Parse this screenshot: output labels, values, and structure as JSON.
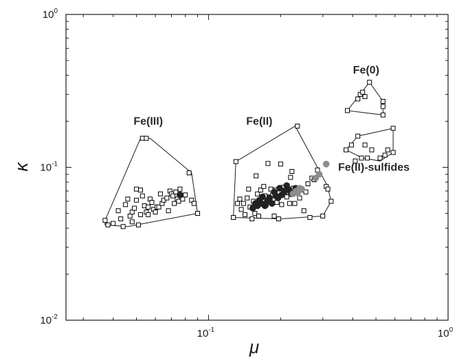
{
  "chart_data": {
    "type": "scatter",
    "title": "",
    "xlabel": "μ",
    "ylabel": "κ",
    "xscale": "log",
    "yscale": "log",
    "xlim": [
      0.0254,
      1.0
    ],
    "ylim": [
      0.01,
      1.0
    ],
    "grid": false,
    "x_ticks": [
      {
        "value": 0.1,
        "base": "10",
        "exp": "-1"
      },
      {
        "value": 1.0,
        "base": "10",
        "exp": "0"
      }
    ],
    "y_ticks": [
      {
        "value": 0.01,
        "base": "10",
        "exp": "-2"
      },
      {
        "value": 0.1,
        "base": "10",
        "exp": "-1"
      },
      {
        "value": 1.0,
        "base": "10",
        "exp": "0"
      }
    ],
    "groups": [
      {
        "label": "Fe(III)",
        "label_at": [
          0.056,
          0.19
        ],
        "hull": [
          [
            0.037,
            0.045
          ],
          [
            0.037,
            0.042
          ],
          [
            0.046,
            0.041
          ],
          [
            0.09,
            0.05
          ],
          [
            0.085,
            0.092
          ],
          [
            0.057,
            0.155
          ],
          [
            0.052,
            0.155
          ]
        ]
      },
      {
        "label": "Fe(II)",
        "label_at": [
          0.163,
          0.19
        ],
        "hull": [
          [
            0.127,
            0.047
          ],
          [
            0.13,
            0.109
          ],
          [
            0.23,
            0.186
          ],
          [
            0.313,
            0.076
          ],
          [
            0.325,
            0.06
          ],
          [
            0.3,
            0.048
          ],
          [
            0.2,
            0.046
          ]
        ]
      },
      {
        "label": "Fe(0)",
        "label_at": [
          0.455,
          0.41
        ],
        "hull": [
          [
            0.38,
            0.235
          ],
          [
            0.47,
            0.36
          ],
          [
            0.535,
            0.27
          ],
          [
            0.535,
            0.22
          ]
        ]
      },
      {
        "label": "Fe(II)-sulfides",
        "label_at": [
          0.49,
          0.095
        ],
        "hull": [
          [
            0.375,
            0.13
          ],
          [
            0.42,
            0.16
          ],
          [
            0.59,
            0.18
          ],
          [
            0.59,
            0.125
          ],
          [
            0.52,
            0.11
          ],
          [
            0.44,
            0.115
          ]
        ]
      }
    ],
    "series": [
      {
        "marker": "open-square",
        "color": "#000000",
        "points": [
          [
            0.037,
            0.045
          ],
          [
            0.038,
            0.042
          ],
          [
            0.04,
            0.043
          ],
          [
            0.042,
            0.052
          ],
          [
            0.043,
            0.046
          ],
          [
            0.045,
            0.057
          ],
          [
            0.044,
            0.041
          ],
          [
            0.046,
            0.062
          ],
          [
            0.047,
            0.048
          ],
          [
            0.048,
            0.051
          ],
          [
            0.048,
            0.044
          ],
          [
            0.049,
            0.054
          ],
          [
            0.05,
            0.072
          ],
          [
            0.05,
            0.061
          ],
          [
            0.051,
            0.042
          ],
          [
            0.052,
            0.049
          ],
          [
            0.052,
            0.071
          ],
          [
            0.053,
            0.065
          ],
          [
            0.053,
            0.155
          ],
          [
            0.054,
            0.056
          ],
          [
            0.055,
            0.051
          ],
          [
            0.055,
            0.155
          ],
          [
            0.056,
            0.055
          ],
          [
            0.056,
            0.049
          ],
          [
            0.057,
            0.062
          ],
          [
            0.058,
            0.059
          ],
          [
            0.059,
            0.053
          ],
          [
            0.06,
            0.051
          ],
          [
            0.061,
            0.055
          ],
          [
            0.062,
            0.055
          ],
          [
            0.063,
            0.067
          ],
          [
            0.064,
            0.058
          ],
          [
            0.065,
            0.061
          ],
          [
            0.067,
            0.063
          ],
          [
            0.068,
            0.052
          ],
          [
            0.069,
            0.07
          ],
          [
            0.07,
            0.067
          ],
          [
            0.071,
            0.065
          ],
          [
            0.072,
            0.058
          ],
          [
            0.073,
            0.069
          ],
          [
            0.074,
            0.062
          ],
          [
            0.075,
            0.06
          ],
          [
            0.076,
            0.072
          ],
          [
            0.077,
            0.064
          ],
          [
            0.078,
            0.062
          ],
          [
            0.08,
            0.066
          ],
          [
            0.083,
            0.092
          ],
          [
            0.085,
            0.061
          ],
          [
            0.087,
            0.058
          ],
          [
            0.09,
            0.05
          ],
          [
            0.127,
            0.047
          ],
          [
            0.13,
            0.109
          ],
          [
            0.132,
            0.058
          ],
          [
            0.135,
            0.062
          ],
          [
            0.137,
            0.053
          ],
          [
            0.14,
            0.058
          ],
          [
            0.142,
            0.049
          ],
          [
            0.145,
            0.063
          ],
          [
            0.147,
            0.072
          ],
          [
            0.149,
            0.055
          ],
          [
            0.152,
            0.046
          ],
          [
            0.154,
            0.06
          ],
          [
            0.156,
            0.05
          ],
          [
            0.158,
            0.088
          ],
          [
            0.16,
            0.067
          ],
          [
            0.162,
            0.048
          ],
          [
            0.165,
            0.071
          ],
          [
            0.167,
            0.058
          ],
          [
            0.17,
            0.075
          ],
          [
            0.172,
            0.065
          ],
          [
            0.174,
            0.057
          ],
          [
            0.177,
            0.106
          ],
          [
            0.179,
            0.064
          ],
          [
            0.182,
            0.072
          ],
          [
            0.185,
            0.066
          ],
          [
            0.188,
            0.048
          ],
          [
            0.19,
            0.071
          ],
          [
            0.193,
            0.059
          ],
          [
            0.196,
            0.046
          ],
          [
            0.2,
            0.105
          ],
          [
            0.202,
            0.057
          ],
          [
            0.205,
            0.074
          ],
          [
            0.208,
            0.069
          ],
          [
            0.212,
            0.064
          ],
          [
            0.215,
            0.072
          ],
          [
            0.218,
            0.058
          ],
          [
            0.22,
            0.086
          ],
          [
            0.223,
            0.094
          ],
          [
            0.226,
            0.073
          ],
          [
            0.229,
            0.058
          ],
          [
            0.232,
            0.069
          ],
          [
            0.235,
            0.186
          ],
          [
            0.24,
            0.063
          ],
          [
            0.245,
            0.071
          ],
          [
            0.25,
            0.052
          ],
          [
            0.255,
            0.069
          ],
          [
            0.26,
            0.078
          ],
          [
            0.265,
            0.047
          ],
          [
            0.27,
            0.085
          ],
          [
            0.276,
            0.083
          ],
          [
            0.285,
            0.096
          ],
          [
            0.3,
            0.048
          ],
          [
            0.31,
            0.075
          ],
          [
            0.315,
            0.072
          ],
          [
            0.325,
            0.06
          ],
          [
            0.38,
            0.235
          ],
          [
            0.42,
            0.28
          ],
          [
            0.43,
            0.3
          ],
          [
            0.44,
            0.31
          ],
          [
            0.45,
            0.29
          ],
          [
            0.47,
            0.36
          ],
          [
            0.535,
            0.27
          ],
          [
            0.535,
            0.25
          ],
          [
            0.535,
            0.22
          ],
          [
            0.375,
            0.13
          ],
          [
            0.395,
            0.14
          ],
          [
            0.41,
            0.11
          ],
          [
            0.42,
            0.16
          ],
          [
            0.435,
            0.115
          ],
          [
            0.45,
            0.14
          ],
          [
            0.46,
            0.115
          ],
          [
            0.48,
            0.13
          ],
          [
            0.52,
            0.115
          ],
          [
            0.545,
            0.12
          ],
          [
            0.56,
            0.13
          ],
          [
            0.59,
            0.18
          ],
          [
            0.59,
            0.125
          ]
        ]
      },
      {
        "marker": "filled-circle",
        "color": "#222222",
        "points": [
          [
            0.076,
            0.066
          ],
          [
            0.153,
            0.054
          ],
          [
            0.157,
            0.058
          ],
          [
            0.16,
            0.056
          ],
          [
            0.163,
            0.061
          ],
          [
            0.166,
            0.058
          ],
          [
            0.168,
            0.064
          ],
          [
            0.172,
            0.056
          ],
          [
            0.176,
            0.06
          ],
          [
            0.18,
            0.063
          ],
          [
            0.184,
            0.058
          ],
          [
            0.188,
            0.069
          ],
          [
            0.191,
            0.065
          ],
          [
            0.195,
            0.063
          ],
          [
            0.198,
            0.073
          ],
          [
            0.202,
            0.066
          ],
          [
            0.207,
            0.07
          ],
          [
            0.212,
            0.076
          ],
          [
            0.217,
            0.071
          ],
          [
            0.221,
            0.067
          ],
          [
            0.227,
            0.068
          ],
          [
            0.231,
            0.073
          ]
        ]
      },
      {
        "marker": "filled-circle",
        "color": "#8c8c8c",
        "points": [
          [
            0.225,
            0.067
          ],
          [
            0.232,
            0.07
          ],
          [
            0.236,
            0.068
          ],
          [
            0.24,
            0.073
          ],
          [
            0.245,
            0.072
          ],
          [
            0.28,
            0.085
          ],
          [
            0.29,
            0.09
          ],
          [
            0.31,
            0.105
          ]
        ]
      }
    ]
  }
}
